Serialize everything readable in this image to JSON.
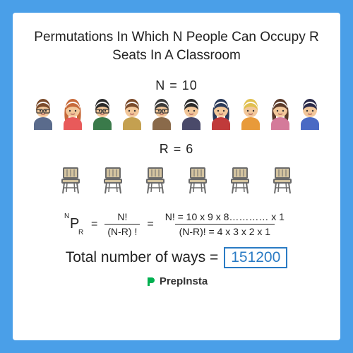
{
  "colors": {
    "outer_bg": "#4a9fe8",
    "card_bg": "#ffffff",
    "text": "#222222",
    "accent": "#2a7bc4",
    "brand_green": "#00b050"
  },
  "title": "Permutations In Which N People Can Occupy R Seats In A Classroom",
  "n_label": "N  = 10",
  "r_label": "R  = 6",
  "people_count": 10,
  "seat_count": 6,
  "formula": {
    "sup": "N",
    "main": "P",
    "sub": "R",
    "frac1_num": "N!",
    "frac1_den": "(N-R) !",
    "frac2_num": "N! = 10 x 9 x 8…………  x 1",
    "frac2_den": "(N-R)! = 4 x 3 x 2 x 1"
  },
  "answer_label": "Total number of ways =",
  "answer_value": "151200",
  "brand": "PrepInsta",
  "people_palette": [
    {
      "hair": "#7a4a2a",
      "skin": "#f2c79a",
      "shirt": "#5a6b8c"
    },
    {
      "hair": "#c76a3a",
      "skin": "#f2c79a",
      "shirt": "#e85a5a"
    },
    {
      "hair": "#2a2a2a",
      "skin": "#f2c79a",
      "shirt": "#3a7a4a"
    },
    {
      "hair": "#7a4a2a",
      "skin": "#f2c79a",
      "shirt": "#c4a050"
    },
    {
      "hair": "#3a3a3a",
      "skin": "#f2c79a",
      "shirt": "#8a6a4a"
    },
    {
      "hair": "#2a2a2a",
      "skin": "#f2c79a",
      "shirt": "#4a4a6a"
    },
    {
      "hair": "#2a3a5a",
      "skin": "#f2c79a",
      "shirt": "#c03a3a"
    },
    {
      "hair": "#e0c050",
      "skin": "#f2c79a",
      "shirt": "#e89a3a"
    },
    {
      "hair": "#5a3a2a",
      "skin": "#f2c79a",
      "shirt": "#d47a9a"
    },
    {
      "hair": "#2a2a4a",
      "skin": "#f2c79a",
      "shirt": "#4a6ac4"
    }
  ],
  "seat_color": {
    "frame": "#6a6a6a",
    "fill": "#d4c4a0"
  }
}
